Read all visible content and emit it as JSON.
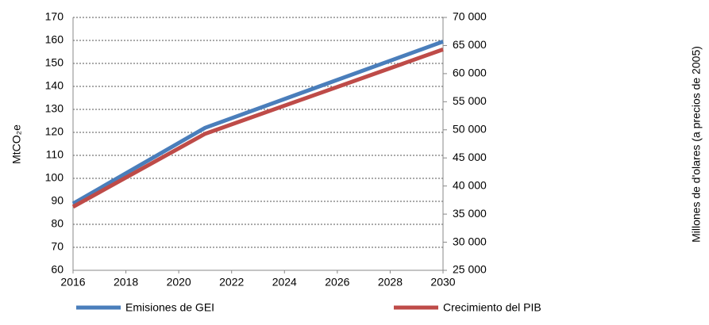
{
  "chart_data": {
    "type": "line",
    "x": [
      2016,
      2021,
      2030
    ],
    "series": [
      {
        "name": "Emisiones de GEI",
        "color": "#4a7ebb",
        "values": [
          89,
          122,
          159.5
        ]
      },
      {
        "name": "Crecimiento del PIB",
        "color": "#be4b48",
        "axis": "y2",
        "values": [
          36300,
          49300,
          64300
        ]
      }
    ],
    "y_label": "MtCO₂e",
    "y2_label": "Millones de d'olares (a precios de 2005)",
    "xlim": [
      2016,
      2030
    ],
    "xticks": [
      2016,
      2018,
      2020,
      2022,
      2024,
      2026,
      2028,
      2030
    ],
    "ylim": [
      60,
      170
    ],
    "yticks": [
      60,
      70,
      80,
      90,
      100,
      110,
      120,
      130,
      140,
      150,
      160,
      170
    ],
    "y2lim": [
      25000,
      70000
    ],
    "y2ticks": [
      {
        "value": 25000,
        "label": "25 000"
      },
      {
        "value": 30000,
        "label": "30 000"
      },
      {
        "value": 35000,
        "label": "35 000"
      },
      {
        "value": 40000,
        "label": "40 000"
      },
      {
        "value": 45000,
        "label": "45 000"
      },
      {
        "value": 50000,
        "label": "50 000"
      },
      {
        "value": 55000,
        "label": "55 000"
      },
      {
        "value": 60000,
        "label": "60 000"
      },
      {
        "value": 65000,
        "label": "65 000"
      },
      {
        "value": 70000,
        "label": "70 000"
      }
    ],
    "grid": true,
    "legend": "bottom"
  }
}
